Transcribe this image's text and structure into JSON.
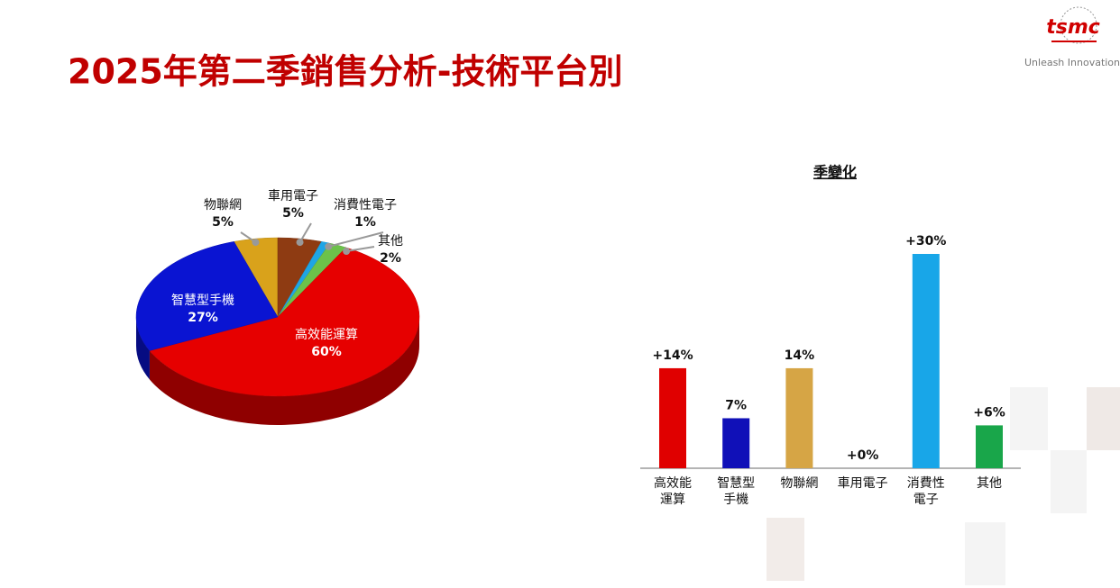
{
  "title": "2025年第二季銷售分析-技術平台別",
  "logo": {
    "brand": "tsmc",
    "tagline": "Unleash Innovation"
  },
  "chart_data": [
    {
      "type": "pie",
      "categories": [
        "物聯網",
        "車用電子",
        "消費性電子",
        "其他",
        "高效能運算",
        "智慧型手機"
      ],
      "values": [
        5,
        5,
        1,
        2,
        60,
        27
      ],
      "value_labels": [
        "5%",
        "5%",
        "1%",
        "2%",
        "60%",
        "27%"
      ],
      "colors": [
        "#d9a21b",
        "#8e3b12",
        "#1ea5e6",
        "#6cc24a",
        "#e60000",
        "#0a14d2"
      ]
    },
    {
      "type": "bar",
      "title": "季變化",
      "categories": [
        "高效能\n運算",
        "智慧型\n手機",
        "物聯網",
        "車用電子",
        "消費性\n電子",
        "其他"
      ],
      "values": [
        14,
        7,
        14,
        0,
        30,
        6
      ],
      "value_labels": [
        "+14%",
        "7%",
        "14%",
        "+0%",
        "+30%",
        "+6%"
      ],
      "colors": [
        "#e00000",
        "#1010b8",
        "#d6a545",
        "#8e3b12",
        "#18a6e8",
        "#19a64a"
      ]
    }
  ]
}
